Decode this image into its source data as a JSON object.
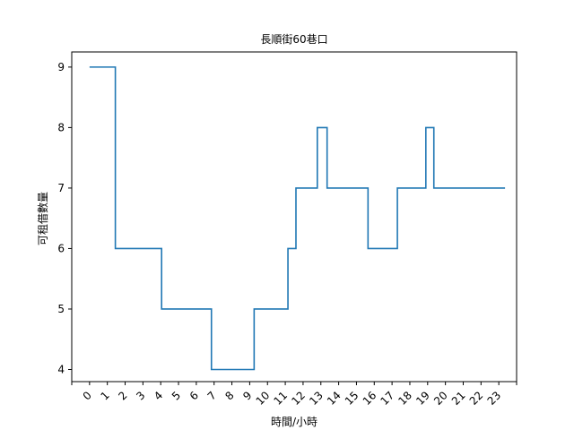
{
  "chart_data": {
    "type": "line",
    "title": "長順街60巷口",
    "xlabel": "時間/小時",
    "ylabel": "可租借數量",
    "x_ticks": [
      "0",
      "1",
      "2",
      "3",
      "4",
      "5",
      "6",
      "7",
      "8",
      "9",
      "10",
      "11",
      "12",
      "13",
      "14",
      "15",
      "16",
      "17",
      "18",
      "19",
      "20",
      "21",
      "22",
      "23"
    ],
    "y_ticks": [
      4,
      5,
      6,
      7,
      8,
      9
    ],
    "xlim": [
      -1,
      24
    ],
    "ylim": [
      3.8,
      9.25
    ],
    "grid": false,
    "line_color": "#1f77b4",
    "series": [
      {
        "step": "post",
        "x": [
          0,
          1.45,
          4.05,
          6.85,
          9.25,
          11.15,
          11.6,
          12.8,
          13.35,
          15.65,
          17.3,
          18.9,
          19.35,
          23.35
        ],
        "values": [
          9,
          6,
          5,
          4,
          5,
          6,
          7,
          8,
          7,
          6,
          7,
          8,
          7,
          7
        ]
      }
    ]
  }
}
